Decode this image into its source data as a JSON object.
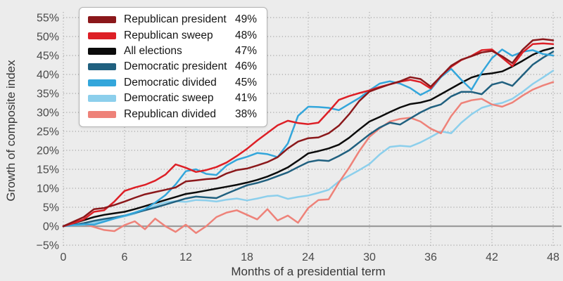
{
  "chart_data": {
    "type": "line",
    "title": "",
    "xlabel": "Months of a presidential term",
    "ylabel": "Growth of composite index",
    "xlim": [
      0,
      48
    ],
    "ylim": [
      -5,
      55
    ],
    "grid": "dotted",
    "legend_position": "top-left",
    "x_tick_values": [
      0,
      6,
      12,
      18,
      24,
      30,
      36,
      42,
      48
    ],
    "x_tick_labels": [
      "0",
      "6",
      "12",
      "18",
      "24",
      "30",
      "36",
      "42",
      "48"
    ],
    "y_tick_values": [
      55,
      50,
      45,
      40,
      35,
      30,
      25,
      20,
      15,
      10,
      5,
      0,
      -5
    ],
    "y_tick_labels": [
      "55%",
      "50%",
      "45%",
      "40%",
      "35%",
      "30%",
      "25%",
      "20%",
      "15%",
      "10%",
      "5%",
      "0%",
      "−5%"
    ],
    "x": [
      0,
      1,
      2,
      3,
      4,
      5,
      6,
      7,
      8,
      9,
      10,
      11,
      12,
      13,
      14,
      15,
      16,
      17,
      18,
      19,
      20,
      21,
      22,
      23,
      24,
      25,
      26,
      27,
      28,
      29,
      30,
      31,
      32,
      33,
      34,
      35,
      36,
      37,
      38,
      39,
      40,
      41,
      42,
      43,
      44,
      45,
      46,
      47,
      48
    ],
    "draw_order": [
      5,
      6,
      3,
      2,
      4,
      1,
      0
    ],
    "series": [
      {
        "name": "Republican president",
        "legend_value": "49%",
        "color": "#8B181B",
        "values": [
          0,
          1.2,
          2.4,
          4.5,
          4.8,
          5.6,
          6.5,
          7.5,
          8.4,
          9.0,
          9.6,
          10.2,
          11.8,
          12.1,
          12.4,
          12.6,
          13.9,
          14.8,
          15.2,
          16.0,
          16.9,
          18.2,
          20.5,
          22.3,
          23.2,
          23.4,
          24.5,
          26.5,
          29.5,
          33.0,
          35.5,
          36.5,
          37.4,
          38.2,
          39.3,
          38.8,
          36.8,
          39.5,
          42.3,
          43.9,
          44.8,
          45.8,
          46.2,
          44.8,
          43.0,
          46.5,
          49.0,
          49.3,
          49.0
        ]
      },
      {
        "name": "Republican sweep",
        "legend_value": "48%",
        "color": "#DD1F26",
        "values": [
          0,
          0.8,
          1.8,
          3.8,
          4.2,
          6.5,
          9.3,
          10.2,
          10.9,
          12.0,
          13.6,
          16.3,
          15.4,
          14.3,
          14.8,
          15.6,
          16.8,
          18.5,
          20.4,
          22.6,
          24.6,
          26.6,
          27.8,
          27.2,
          26.9,
          27.3,
          30.2,
          33.3,
          34.3,
          35.1,
          35.8,
          36.7,
          37.4,
          38.1,
          38.6,
          38.0,
          36.3,
          39.6,
          42.0,
          43.8,
          44.9,
          46.4,
          46.6,
          44.4,
          42.2,
          45.8,
          48.0,
          48.2,
          48.0
        ]
      },
      {
        "name": "All elections",
        "legend_value": "47%",
        "color": "#0B0B0B",
        "values": [
          0,
          0.8,
          1.6,
          2.4,
          3.0,
          3.4,
          3.8,
          4.5,
          5.3,
          6.1,
          6.9,
          7.7,
          8.5,
          8.9,
          9.4,
          9.9,
          10.4,
          10.9,
          11.5,
          12.2,
          13.1,
          14.2,
          15.5,
          17.3,
          19.2,
          19.8,
          20.5,
          21.5,
          23.3,
          25.5,
          27.6,
          28.8,
          30.1,
          31.3,
          32.2,
          32.6,
          33.3,
          34.8,
          36.3,
          37.8,
          39.2,
          40.0,
          40.3,
          40.8,
          42.1,
          43.6,
          45.2,
          46.3,
          47.0
        ]
      },
      {
        "name": "Democratic president",
        "legend_value": "46%",
        "color": "#20607F",
        "values": [
          0,
          0.4,
          0.8,
          1.4,
          1.9,
          2.3,
          2.8,
          3.5,
          4.2,
          4.9,
          5.7,
          6.5,
          7.3,
          7.8,
          7.6,
          7.4,
          8.6,
          9.7,
          10.8,
          11.4,
          12.2,
          13.2,
          14.2,
          15.6,
          16.9,
          17.4,
          17.2,
          18.5,
          20.0,
          22.1,
          24.2,
          26.0,
          27.3,
          26.8,
          28.4,
          30.0,
          31.3,
          32.1,
          34.2,
          35.4,
          35.4,
          34.8,
          37.3,
          38.0,
          37.0,
          39.8,
          42.6,
          44.4,
          46.0
        ]
      },
      {
        "name": "Democratic divided",
        "legend_value": "45%",
        "color": "#33A6DB",
        "values": [
          0,
          0.3,
          0.5,
          0.4,
          1.2,
          2.0,
          2.8,
          3.6,
          4.5,
          6.2,
          8.2,
          11.0,
          14.5,
          15.0,
          13.8,
          13.5,
          16.0,
          17.5,
          18.3,
          19.3,
          19.0,
          18.2,
          21.8,
          29.1,
          31.5,
          31.4,
          31.2,
          30.6,
          32.2,
          33.8,
          35.8,
          37.6,
          38.2,
          37.6,
          36.4,
          34.6,
          36.0,
          39.3,
          41.5,
          38.6,
          36.0,
          40.5,
          44.3,
          46.6,
          44.9,
          46.0,
          46.4,
          45.4,
          45.0
        ]
      },
      {
        "name": "Democratic sweep",
        "legend_value": "41%",
        "color": "#8CCFEC",
        "values": [
          0,
          0.2,
          0.4,
          0.9,
          1.5,
          2.0,
          2.6,
          3.3,
          4.3,
          5.4,
          6.3,
          6.6,
          6.4,
          6.9,
          6.8,
          6.5,
          7.0,
          7.3,
          6.8,
          7.3,
          7.9,
          8.1,
          7.2,
          7.7,
          8.1,
          8.8,
          9.6,
          11.8,
          13.3,
          14.8,
          16.4,
          18.9,
          20.9,
          21.2,
          21.0,
          22.1,
          23.5,
          25.0,
          24.5,
          27.3,
          29.5,
          31.2,
          32.0,
          32.5,
          33.6,
          35.4,
          37.5,
          39.2,
          41.0
        ]
      },
      {
        "name": "Republican divided",
        "legend_value": "38%",
        "color": "#EE8279",
        "values": [
          0,
          0.3,
          0.6,
          -0.2,
          -1.0,
          -1.3,
          0.3,
          1.3,
          -0.8,
          2.0,
          0.0,
          -1.5,
          0.4,
          -1.8,
          0.0,
          2.4,
          3.6,
          4.2,
          3.0,
          1.8,
          4.5,
          1.5,
          2.8,
          0.9,
          4.8,
          6.9,
          7.1,
          11.5,
          15.4,
          19.8,
          23.6,
          25.8,
          27.6,
          28.3,
          28.6,
          27.6,
          25.7,
          24.5,
          29.0,
          32.4,
          33.2,
          33.6,
          32.1,
          31.5,
          32.6,
          34.4,
          36.0,
          37.1,
          38.0
        ]
      }
    ]
  },
  "colors": {
    "background": "#ECECEC",
    "grid": "#B2B2B2",
    "zero_line": "#9C9C9C",
    "tick_text": "#4A4A4A",
    "axis_title_text": "#383838",
    "legend_bg": "#FFFFFF",
    "legend_border": "#B3B3B3",
    "legend_text": "#141414"
  }
}
